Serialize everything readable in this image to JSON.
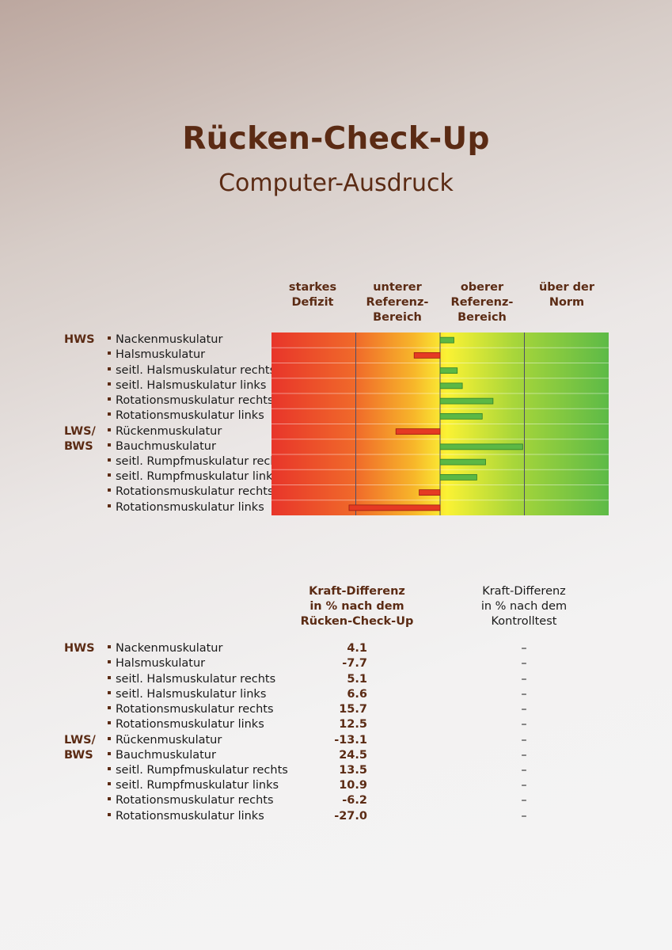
{
  "header": {
    "title": "Rücken-Check-Up",
    "subtitle": "Computer-Ausdruck"
  },
  "chart": {
    "column_headers": [
      {
        "line1": "starkes",
        "line2": "Defizit",
        "line3": ""
      },
      {
        "line1": "unterer",
        "line2": "Referenz-",
        "line3": "Bereich"
      },
      {
        "line1": "oberer",
        "line2": "Referenz-",
        "line3": "Bereich"
      },
      {
        "line1": "über der",
        "line2": "Norm",
        "line3": ""
      }
    ]
  },
  "groups": [
    {
      "line1": "HWS",
      "line2": ""
    },
    {
      "line1": "LWS/",
      "line2": "BWS"
    }
  ],
  "muscles": [
    "Nackenmuskulatur",
    "Halsmuskulatur",
    "seitl. Halsmuskulatur rechts",
    "seitl. Halsmuskulatur links",
    "Rotationsmuskulatur rechts",
    "Rotationsmuskulatur links",
    "Rückenmuskulatur",
    "Bauchmuskulatur",
    "seitl. Rumpfmuskulatur rechts",
    "seitl. Rumpfmuskulatur links",
    "Rotationsmuskulatur rechts",
    "Rotationsmuskulatur links"
  ],
  "table": {
    "col1_lines": [
      "Kraft-Differenz",
      "in % nach dem",
      "Rücken-Check-Up"
    ],
    "col2_lines": [
      "Kraft-Differenz",
      "in % nach dem",
      "Kontrolltest"
    ],
    "values_text": [
      "4.1",
      "-7.7",
      "5.1",
      "6.6",
      "15.7",
      "12.5",
      "-13.1",
      "24.5",
      "13.5",
      "10.9",
      "-6.2",
      "-27.0"
    ],
    "control_text": [
      "–",
      "–",
      "–",
      "–",
      "–",
      "–",
      "–",
      "–",
      "–",
      "–",
      "–",
      "–"
    ]
  },
  "chart_data": {
    "type": "bar",
    "orientation": "horizontal",
    "categories": [
      "Nackenmuskulatur",
      "Halsmuskulatur",
      "seitl. Halsmuskulatur rechts",
      "seitl. Halsmuskulatur links",
      "Rotationsmuskulatur rechts",
      "Rotationsmuskulatur links",
      "Rückenmuskulatur",
      "Bauchmuskulatur",
      "seitl. Rumpfmuskulatur rechts",
      "seitl. Rumpfmuskulatur links",
      "Rotationsmuskulatur rechts",
      "Rotationsmuskulatur links"
    ],
    "values": [
      4.1,
      -7.7,
      5.1,
      6.6,
      15.7,
      12.5,
      -13.1,
      24.5,
      13.5,
      10.9,
      -6.2,
      -27.0
    ],
    "xlim": [
      -50,
      50
    ],
    "zones": [
      "starkes Defizit",
      "unterer Referenz-Bereich",
      "oberer Referenz-Bereich",
      "über der Norm"
    ],
    "colors": {
      "positive_fill": "#5cb845",
      "positive_stroke": "#2f7f2a",
      "negative_fill": "#e53a23",
      "negative_stroke": "#9a1d10",
      "bg_red": "#e8352a",
      "bg_orange": "#f5a623",
      "bg_yellow": "#fbf234",
      "bg_green": "#5dba47"
    },
    "legend": "none",
    "grid": true
  }
}
